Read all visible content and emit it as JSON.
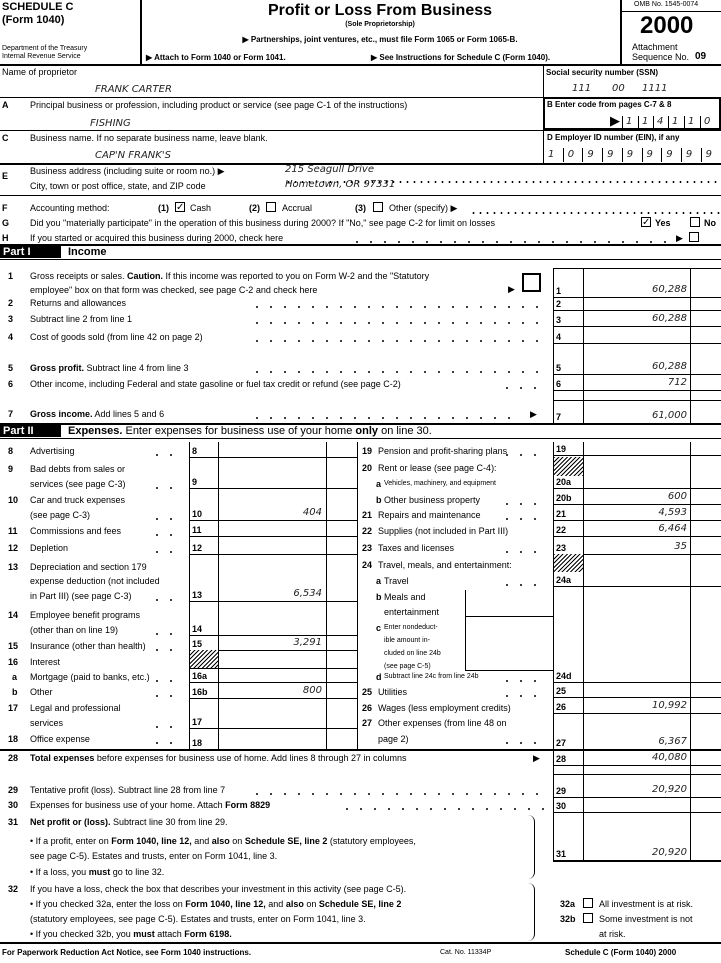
{
  "header": {
    "schedule": "SCHEDULE C",
    "form": "(Form 1040)",
    "dept1": "Department of the Treasury",
    "dept2": "Internal Revenue Service",
    "title": "Profit or Loss From Business",
    "subtitle": "(Sole Proprietorship)",
    "partnerships": "▶ Partnerships, joint ventures, etc., must file Form 1065 or Form 1065-B.",
    "attach": "▶ Attach to Form 1040 or Form 1041.",
    "see_instructions": "▶ See Instructions for Schedule C (Form 1040).",
    "omb": "OMB No. 1545-0074",
    "year": "2000",
    "attachment": "Attachment",
    "sequence_label": "Sequence No.",
    "sequence_no": "09"
  },
  "proprietor": {
    "label": "Name of proprietor",
    "value": "FRANK CARTER"
  },
  "ssn": {
    "label": "Social security number (SSN)",
    "part1": "111",
    "part2": "00",
    "part3": "1111"
  },
  "lineA": {
    "letter": "A",
    "label": "Principal business or profession, including product or service (see page C-1 of the instructions)",
    "value": "FISHING"
  },
  "lineB": {
    "label": "B  Enter code from pages C-7 & 8",
    "arrow": "▶",
    "code": [
      "1",
      "1",
      "4",
      "1",
      "1",
      "0"
    ]
  },
  "lineC": {
    "letter": "C",
    "label": "Business name. If no separate business name, leave blank.",
    "value": "CAP'N FRANK'S"
  },
  "lineD": {
    "label": "D  Employer ID number (EIN), if any",
    "ein": [
      "1",
      "0",
      "9",
      "9",
      "9",
      "9",
      "9",
      "9",
      "9"
    ]
  },
  "lineE": {
    "letter": "E",
    "label1": "Business address (including suite or room no.) ▶",
    "label2": "City, town or post office, state, and ZIP code",
    "address": "215 Seagull Drive",
    "city": "Hometown, OR 97331"
  },
  "lineF": {
    "letter": "F",
    "label": "Accounting method:",
    "opt1_num": "(1)",
    "opt1": "Cash",
    "opt1_checked": true,
    "opt2_num": "(2)",
    "opt2": "Accrual",
    "opt2_checked": false,
    "opt3_num": "(3)",
    "opt3": "Other (specify) ▶",
    "opt3_checked": false
  },
  "lineG": {
    "letter": "G",
    "label": "Did you \"materially participate\" in the operation of this business during 2000? If \"No,\" see page C-2 for limit on losses",
    "yes": "Yes",
    "yes_checked": true,
    "no": "No",
    "no_checked": false
  },
  "lineH": {
    "letter": "H",
    "label": "If you started or acquired this business during 2000, check here",
    "arrow": "▶",
    "checked": false
  },
  "part1": {
    "tab": "Part I",
    "title": "Income",
    "l1": {
      "num": "1",
      "t1": "Gross receipts or sales. ",
      "b1": "Caution.",
      "t2": " If this income was reported to you on Form W-2 and the \"Statutory",
      "t3": "employee\" box on that form was checked, see page C-2 and check here",
      "arrow": "▶",
      "box": "1",
      "amount": "60,288"
    },
    "l2": {
      "num": "2",
      "text": "Returns and allowances",
      "box": "2",
      "amount": ""
    },
    "l3": {
      "num": "3",
      "text": "Subtract line 2 from line 1",
      "box": "3",
      "amount": "60,288"
    },
    "l4": {
      "num": "4",
      "text": "Cost of goods sold (from line 42 on page 2)",
      "box": "4",
      "amount": ""
    },
    "l5": {
      "num": "5",
      "bold": "Gross profit.",
      "text": " Subtract line 4 from line 3",
      "box": "5",
      "amount": "60,288"
    },
    "l6": {
      "num": "6",
      "text": "Other income, including Federal and state gasoline or fuel tax credit or refund (see page C-2)",
      "box": "6",
      "amount": "712"
    },
    "l7": {
      "num": "7",
      "bold": "Gross income.",
      "text": " Add lines 5 and 6",
      "arrow": "▶",
      "box": "7",
      "amount": "61,000"
    }
  },
  "part2": {
    "tab": "Part II",
    "title": "Expenses.",
    "sub1": " Enter expenses for business use of your home ",
    "sub_bold": "only",
    "sub2": " on line 30.",
    "left": [
      {
        "num": "8",
        "lines": [
          "Advertising"
        ],
        "box": "8",
        "amount": ""
      },
      {
        "num": "9",
        "lines": [
          "Bad debts from sales or",
          "services (see page C-3)"
        ],
        "box": "9",
        "amount": ""
      },
      {
        "num": "10",
        "lines": [
          "Car and truck expenses",
          "(see page C-3)"
        ],
        "box": "10",
        "amount": "404"
      },
      {
        "num": "11",
        "lines": [
          "Commissions and fees"
        ],
        "box": "11",
        "amount": ""
      },
      {
        "num": "12",
        "lines": [
          "Depletion"
        ],
        "box": "12",
        "amount": ""
      },
      {
        "num": "13",
        "lines": [
          "Depreciation and section 179",
          "expense deduction (not included",
          "in Part III) (see page C-3)"
        ],
        "box": "13",
        "amount": "6,534"
      },
      {
        "num": "14",
        "lines": [
          "Employee benefit programs",
          "(other than on line 19)"
        ],
        "box": "14",
        "amount": ""
      },
      {
        "num": "15",
        "lines": [
          "Insurance (other than health)"
        ],
        "box": "15",
        "amount": "3,291"
      },
      {
        "num": "16",
        "lines": [
          "Interest"
        ],
        "box": "",
        "amount": ""
      },
      {
        "num": "a",
        "lines": [
          "Mortgage (paid to banks, etc.)"
        ],
        "box": "16a",
        "amount": ""
      },
      {
        "num": "b",
        "lines": [
          "Other"
        ],
        "box": "16b",
        "amount": "800"
      },
      {
        "num": "17",
        "lines": [
          "Legal and professional",
          "services"
        ],
        "box": "17",
        "amount": ""
      },
      {
        "num": "18",
        "lines": [
          "Office expense"
        ],
        "box": "18",
        "amount": ""
      }
    ],
    "right": [
      {
        "num": "19",
        "lines": [
          "Pension and profit-sharing plans"
        ],
        "box": "19",
        "amount": ""
      },
      {
        "num": "20",
        "lines": [
          "Rent or lease (see page C-4):"
        ],
        "box": "",
        "amount": ""
      },
      {
        "num": "a",
        "lines": [
          "Vehicles, machinery, and equipment"
        ],
        "box": "20a",
        "amount": ""
      },
      {
        "num": "b",
        "lines": [
          "Other business property"
        ],
        "box": "20b",
        "amount": "600"
      },
      {
        "num": "21",
        "lines": [
          "Repairs and maintenance"
        ],
        "box": "21",
        "amount": "4,593"
      },
      {
        "num": "22",
        "lines": [
          "Supplies (not included in Part III)"
        ],
        "box": "22",
        "amount": "6,464"
      },
      {
        "num": "23",
        "lines": [
          "Taxes and licenses"
        ],
        "box": "23",
        "amount": "35"
      },
      {
        "num": "24",
        "lines": [
          "Travel, meals, and entertainment:"
        ],
        "box": "",
        "amount": ""
      },
      {
        "num": "a",
        "lines": [
          "Travel"
        ],
        "box": "24a",
        "amount": ""
      },
      {
        "num": "b",
        "lines": [
          "Meals and",
          "entertainment"
        ],
        "box": "",
        "amount": ""
      },
      {
        "num": "c",
        "lines": [
          "Enter nondeduct-",
          "ible amount in-",
          "cluded on line 24b",
          "(see page C-5)"
        ],
        "box": "",
        "amount": ""
      },
      {
        "num": "d",
        "lines": [
          "Subtract line 24c from line 24b"
        ],
        "box": "24d",
        "amount": ""
      },
      {
        "num": "25",
        "lines": [
          "Utilities"
        ],
        "box": "25",
        "amount": ""
      },
      {
        "num": "26",
        "lines": [
          "Wages (less employment credits)"
        ],
        "box": "26",
        "amount": "10,992"
      },
      {
        "num": "27",
        "lines": [
          "Other expenses (from line 48 on",
          "page 2)"
        ],
        "box": "27",
        "amount": "6,367"
      }
    ],
    "l28": {
      "num": "28",
      "bold": "Total expenses",
      "text": " before expenses for business use of home. Add lines 8 through 27 in columns",
      "arrow": "▶",
      "box": "28",
      "amount": "40,080"
    },
    "l29": {
      "num": "29",
      "text": "Tentative profit (loss). Subtract line 28 from line 7",
      "box": "29",
      "amount": "20,920"
    },
    "l30": {
      "num": "30",
      "text": "Expenses for business use of your home. Attach ",
      "bold": "Form 8829",
      "box": "30",
      "amount": ""
    },
    "l31": {
      "num": "31",
      "bold": "Net profit or (loss).",
      "text": " Subtract line 30 from line 29.",
      "b1_t1": "• If a profit, enter on ",
      "b1_b1": "Form 1040, line 12,",
      "b1_t2": " and ",
      "b1_b2": "also",
      "b1_t3": " on ",
      "b1_b3": "Schedule SE, line 2",
      "b1_t4": " (statutory employees,",
      "b1_line2": "see page C-5). Estates and trusts, enter on Form 1041, line 3.",
      "b2_t1": "• If a loss, you ",
      "b2_b1": "must",
      "b2_t2": " go to line 32.",
      "box": "31",
      "amount": "20,920"
    },
    "l32": {
      "num": "32",
      "text": "If you have a loss, check the box that describes your investment in this activity (see page C-5).",
      "b1_t1": "• If you checked 32a, enter the loss on ",
      "b1_b1": "Form 1040, line 12,",
      "b1_t2": " and ",
      "b1_b2": "also",
      "b1_t3": " on ",
      "b1_b3": "Schedule SE, line 2",
      "b1_line2": "(statutory employees, see page C-5). Estates and trusts, enter on Form 1041, line 3.",
      "b2_t1": "• If you checked 32b, you ",
      "b2_b1": "must",
      "b2_t2": " attach ",
      "b2_b2": "Form 6198.",
      "a_label": "32a",
      "a_text": "All investment is at risk.",
      "a_checked": false,
      "b_label": "32b",
      "b_text": "Some investment is not",
      "b_text2": "at risk.",
      "b_checked": false
    }
  },
  "footer": {
    "paperwork": "For Paperwork Reduction Act Notice, see Form 1040 instructions.",
    "cat": "Cat. No. 11334P",
    "form_id": "Schedule C (Form 1040) 2000"
  }
}
